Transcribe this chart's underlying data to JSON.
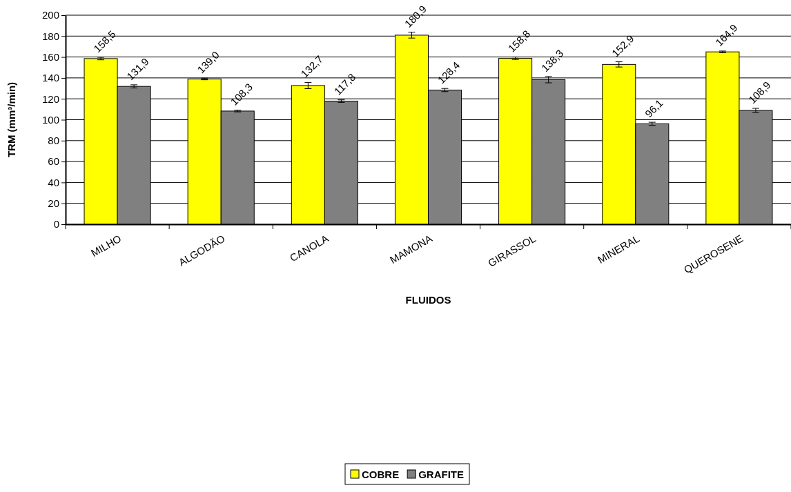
{
  "chart_data": {
    "type": "bar",
    "xlabel": "FLUIDOS",
    "ylabel": "TRM (mm³/min)",
    "categories": [
      "MILHO",
      "ALGODÃO",
      "CANOLA",
      "MAMONA",
      "GIRASSOL",
      "MINERAL",
      "QUEROSENE"
    ],
    "series": [
      {
        "name": "COBRE",
        "color": "#ffff00",
        "values": [
          158.5,
          139.0,
          132.7,
          180.9,
          158.8,
          152.9,
          164.9
        ],
        "value_labels": [
          "158,5",
          "139,0",
          "132,7",
          "180,9",
          "158,8",
          "152,9",
          "164,9"
        ],
        "errors": [
          1.2,
          0.8,
          3.0,
          2.8,
          1.2,
          2.5,
          0.8
        ]
      },
      {
        "name": "GRAFITE",
        "color": "#808080",
        "values": [
          131.9,
          108.3,
          117.8,
          128.4,
          138.3,
          96.1,
          108.9
        ],
        "value_labels": [
          "131,9",
          "108,3",
          "117,8",
          "128,4",
          "138,3",
          "96,1",
          "108,9"
        ],
        "errors": [
          1.5,
          0.8,
          1.2,
          1.5,
          3.0,
          1.5,
          2.0
        ]
      }
    ],
    "ylim": [
      0,
      200
    ],
    "yticks": [
      0,
      20,
      40,
      60,
      80,
      100,
      120,
      140,
      160,
      180,
      200
    ],
    "grid": "y",
    "legend": "bottom"
  }
}
